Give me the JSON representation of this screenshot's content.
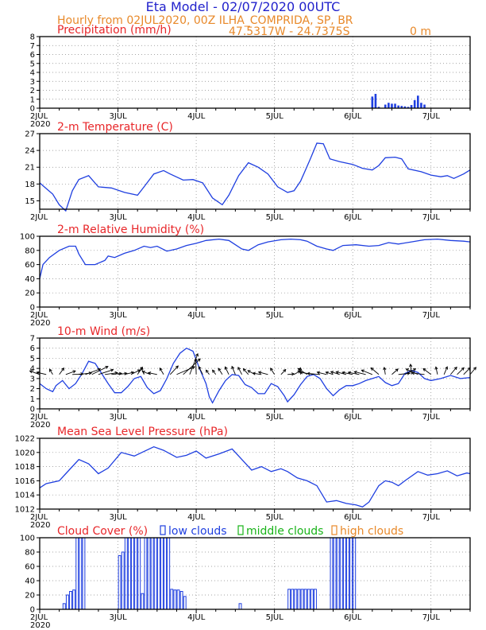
{
  "header": {
    "title": "Eta Model - 02/07/2020 00UTC",
    "subtitle": "Hourly from 02JUL2020, 00Z  ILHA_COMPRIDA, SP, BR",
    "coords": "47.5317W - 24.7375S",
    "elevation": "0   m",
    "title_color": "#2222cc",
    "subtitle_color": "#e8892a"
  },
  "colors": {
    "line": "#1f3fe0",
    "panel_title": "#e8272a",
    "low": "#1f3fe0",
    "middle": "#18b318",
    "high": "#e8892a",
    "arrow": "#000000"
  },
  "xaxis": {
    "labels": [
      "2JUL",
      "3JUL",
      "4JUL",
      "5JUL",
      "6JUL",
      "7JUL"
    ],
    "year": "2020",
    "hours_total": 132
  },
  "chart_data": [
    {
      "id": "precip",
      "type": "bar",
      "title": "Precipitation (mm/h)",
      "ylim": [
        0,
        8
      ],
      "yticks": [
        0,
        1,
        2,
        3,
        4,
        5,
        6,
        7,
        8
      ],
      "show_year": true,
      "points": [
        [
          102,
          1.3
        ],
        [
          103,
          1.6
        ],
        [
          104,
          0.15
        ],
        [
          106,
          0.4
        ],
        [
          107,
          0.6
        ],
        [
          108,
          0.5
        ],
        [
          109,
          0.5
        ],
        [
          110,
          0.3
        ],
        [
          111,
          0.25
        ],
        [
          112,
          0.2
        ],
        [
          113,
          0.15
        ],
        [
          114,
          0.35
        ],
        [
          115,
          0.9
        ],
        [
          116,
          1.4
        ],
        [
          117,
          0.6
        ],
        [
          118,
          0.4
        ]
      ]
    },
    {
      "id": "temp",
      "type": "line",
      "title": "2-m Temperature (C)",
      "ylim": [
        13.5,
        27
      ],
      "yticks": [
        15,
        18,
        21,
        24,
        27
      ],
      "show_year": false,
      "points": [
        [
          0,
          18.2
        ],
        [
          2,
          17.2
        ],
        [
          4,
          16.2
        ],
        [
          6,
          14.3
        ],
        [
          8,
          13.2
        ],
        [
          10,
          16.8
        ],
        [
          12,
          18.8
        ],
        [
          15,
          19.5
        ],
        [
          18,
          17.5
        ],
        [
          22,
          17.3
        ],
        [
          26,
          16.5
        ],
        [
          30,
          16.0
        ],
        [
          32,
          17.5
        ],
        [
          35,
          19.8
        ],
        [
          38,
          20.4
        ],
        [
          40,
          19.8
        ],
        [
          44,
          18.7
        ],
        [
          47,
          18.8
        ],
        [
          50,
          18.2
        ],
        [
          53,
          15.5
        ],
        [
          56,
          14.3
        ],
        [
          58,
          16.0
        ],
        [
          61,
          19.5
        ],
        [
          64,
          21.8
        ],
        [
          67,
          21.0
        ],
        [
          70,
          19.8
        ],
        [
          73,
          17.5
        ],
        [
          76,
          16.5
        ],
        [
          78,
          16.8
        ],
        [
          80,
          18.5
        ],
        [
          83,
          22.5
        ],
        [
          85,
          25.3
        ],
        [
          87,
          25.2
        ],
        [
          89,
          22.5
        ],
        [
          92,
          22.0
        ],
        [
          96,
          21.5
        ],
        [
          99,
          20.8
        ],
        [
          102,
          20.5
        ],
        [
          104,
          21.3
        ],
        [
          106,
          22.7
        ],
        [
          109,
          22.8
        ],
        [
          111,
          22.5
        ],
        [
          113,
          20.7
        ],
        [
          117,
          20.2
        ],
        [
          120,
          19.6
        ],
        [
          123,
          19.3
        ],
        [
          125,
          19.5
        ],
        [
          127,
          19.0
        ],
        [
          130,
          19.8
        ],
        [
          132,
          20.5
        ]
      ]
    },
    {
      "id": "rh",
      "type": "line",
      "title": "2-m Relative Humidity (%)",
      "ylim": [
        0,
        100
      ],
      "yticks": [
        0,
        20,
        40,
        60,
        80,
        100
      ],
      "show_year": true,
      "points": [
        [
          0,
          40
        ],
        [
          1,
          60
        ],
        [
          3,
          70
        ],
        [
          6,
          80
        ],
        [
          9,
          86
        ],
        [
          11,
          86
        ],
        [
          12,
          75
        ],
        [
          14,
          60
        ],
        [
          17,
          60
        ],
        [
          20,
          66
        ],
        [
          21,
          72
        ],
        [
          23,
          70
        ],
        [
          26,
          76
        ],
        [
          29,
          80
        ],
        [
          32,
          86
        ],
        [
          34,
          84
        ],
        [
          36,
          86
        ],
        [
          39,
          79
        ],
        [
          42,
          82
        ],
        [
          45,
          87
        ],
        [
          48,
          90
        ],
        [
          51,
          94
        ],
        [
          55,
          96
        ],
        [
          58,
          94
        ],
        [
          62,
          82
        ],
        [
          64,
          80
        ],
        [
          67,
          88
        ],
        [
          70,
          92
        ],
        [
          74,
          95
        ],
        [
          77,
          96
        ],
        [
          80,
          95
        ],
        [
          82,
          93
        ],
        [
          85,
          86
        ],
        [
          88,
          82
        ],
        [
          90,
          80
        ],
        [
          93,
          87
        ],
        [
          97,
          88
        ],
        [
          101,
          86
        ],
        [
          104,
          87
        ],
        [
          107,
          91
        ],
        [
          110,
          89
        ],
        [
          114,
          92
        ],
        [
          118,
          95
        ],
        [
          122,
          96
        ],
        [
          126,
          94
        ],
        [
          130,
          93
        ],
        [
          132,
          92
        ]
      ]
    },
    {
      "id": "wind",
      "type": "line",
      "title": "10-m Wind (m/s)",
      "ylim": [
        0,
        7
      ],
      "yticks": [
        0,
        1,
        2,
        3,
        4,
        5,
        6,
        7
      ],
      "show_year": true,
      "points": [
        [
          0,
          2.5
        ],
        [
          2,
          2.0
        ],
        [
          4,
          1.7
        ],
        [
          5,
          2.3
        ],
        [
          7,
          2.8
        ],
        [
          9,
          2.0
        ],
        [
          11,
          2.5
        ],
        [
          13,
          3.5
        ],
        [
          15,
          4.7
        ],
        [
          17,
          4.5
        ],
        [
          19,
          3.5
        ],
        [
          21,
          2.5
        ],
        [
          23,
          1.6
        ],
        [
          25,
          1.6
        ],
        [
          27,
          2.2
        ],
        [
          29,
          3.0
        ],
        [
          31,
          3.2
        ],
        [
          33,
          2.1
        ],
        [
          35,
          1.5
        ],
        [
          37,
          1.8
        ],
        [
          39,
          3.0
        ],
        [
          41,
          4.5
        ],
        [
          43,
          5.5
        ],
        [
          45,
          6.0
        ],
        [
          47,
          5.7
        ],
        [
          49,
          4.0
        ],
        [
          51,
          2.5
        ],
        [
          52,
          1.2
        ],
        [
          53,
          0.6
        ],
        [
          55,
          1.8
        ],
        [
          57,
          2.8
        ],
        [
          59,
          3.4
        ],
        [
          61,
          3.3
        ],
        [
          63,
          2.4
        ],
        [
          65,
          2.1
        ],
        [
          67,
          1.5
        ],
        [
          69,
          1.5
        ],
        [
          71,
          2.5
        ],
        [
          73,
          2.2
        ],
        [
          75,
          1.3
        ],
        [
          76,
          0.7
        ],
        [
          78,
          1.4
        ],
        [
          80,
          2.4
        ],
        [
          82,
          3.2
        ],
        [
          84,
          3.4
        ],
        [
          86,
          3.0
        ],
        [
          88,
          2.0
        ],
        [
          90,
          1.3
        ],
        [
          92,
          1.9
        ],
        [
          94,
          2.3
        ],
        [
          96,
          2.3
        ],
        [
          98,
          2.5
        ],
        [
          100,
          2.8
        ],
        [
          102,
          3.0
        ],
        [
          104,
          3.2
        ],
        [
          106,
          2.6
        ],
        [
          108,
          2.3
        ],
        [
          110,
          2.5
        ],
        [
          112,
          3.5
        ],
        [
          114,
          3.8
        ],
        [
          116,
          3.6
        ],
        [
          118,
          3.0
        ],
        [
          120,
          2.8
        ],
        [
          123,
          3.0
        ],
        [
          126,
          3.3
        ],
        [
          129,
          3.0
        ],
        [
          132,
          3.1
        ]
      ]
    },
    {
      "id": "pressure",
      "type": "line",
      "title": "Mean Sea Level Pressure (hPa)",
      "ylim": [
        1012,
        1022
      ],
      "yticks": [
        1012,
        1014,
        1016,
        1018,
        1020,
        1022
      ],
      "show_year": true,
      "points": [
        [
          0,
          1015.0
        ],
        [
          2,
          1015.6
        ],
        [
          6,
          1016.0
        ],
        [
          8,
          1017.0
        ],
        [
          12,
          1019.0
        ],
        [
          15,
          1018.4
        ],
        [
          18,
          1017.0
        ],
        [
          21,
          1017.8
        ],
        [
          25,
          1020.0
        ],
        [
          29,
          1019.5
        ],
        [
          35,
          1020.8
        ],
        [
          38,
          1020.3
        ],
        [
          42,
          1019.3
        ],
        [
          45,
          1019.6
        ],
        [
          48,
          1020.2
        ],
        [
          51,
          1019.2
        ],
        [
          55,
          1019.8
        ],
        [
          59,
          1020.5
        ],
        [
          62,
          1019.0
        ],
        [
          65,
          1017.5
        ],
        [
          68,
          1018.0
        ],
        [
          71,
          1017.3
        ],
        [
          74,
          1017.7
        ],
        [
          76,
          1017.3
        ],
        [
          79,
          1016.4
        ],
        [
          82,
          1016.0
        ],
        [
          85,
          1015.3
        ],
        [
          88,
          1013.0
        ],
        [
          91,
          1013.2
        ],
        [
          94,
          1012.8
        ],
        [
          97,
          1012.6
        ],
        [
          99,
          1012.3
        ],
        [
          101,
          1013.0
        ],
        [
          104,
          1015.3
        ],
        [
          106,
          1016.0
        ],
        [
          108,
          1015.8
        ],
        [
          110,
          1015.3
        ],
        [
          112,
          1016.0
        ],
        [
          116,
          1017.3
        ],
        [
          119,
          1016.8
        ],
        [
          122,
          1017.0
        ],
        [
          125,
          1017.4
        ],
        [
          128,
          1016.7
        ],
        [
          131,
          1017.1
        ],
        [
          132,
          1017.0
        ]
      ]
    },
    {
      "id": "cloud",
      "type": "bar",
      "title": "Cloud Cover (%)",
      "ylim": [
        0,
        100
      ],
      "yticks": [
        0,
        20,
        40,
        60,
        80,
        100
      ],
      "show_year": true,
      "legend": {
        "low": "low clouds",
        "middle": "middle clouds",
        "high": "high clouds"
      },
      "low": [
        0,
        0,
        0,
        0,
        0,
        0,
        0,
        8,
        20,
        25,
        27,
        100,
        100,
        100,
        0,
        0,
        0,
        0,
        0,
        0,
        0,
        0,
        0,
        0,
        75,
        80,
        100,
        100,
        100,
        100,
        100,
        22,
        100,
        100,
        100,
        100,
        100,
        100,
        100,
        100,
        28,
        27,
        27,
        25,
        18,
        0,
        0,
        0,
        0,
        0,
        0,
        0,
        0,
        0,
        0,
        0,
        0,
        0,
        0,
        0,
        0,
        8,
        0,
        0,
        0,
        0,
        0,
        0,
        0,
        0,
        0,
        0,
        0,
        0,
        0,
        0,
        28,
        28,
        28,
        28,
        28,
        28,
        28,
        28,
        28,
        0,
        0,
        0,
        0,
        100,
        100,
        100,
        100,
        100,
        100,
        100,
        100,
        0,
        0,
        0,
        0,
        0,
        0,
        0,
        0,
        0,
        0,
        0,
        0,
        0,
        0,
        0,
        0,
        0,
        0,
        0,
        0,
        0,
        0,
        0,
        0,
        0,
        0,
        0,
        0,
        0,
        0,
        0,
        0,
        0,
        0,
        0,
        0,
        0,
        0,
        0
      ],
      "middle": [],
      "high": []
    }
  ]
}
